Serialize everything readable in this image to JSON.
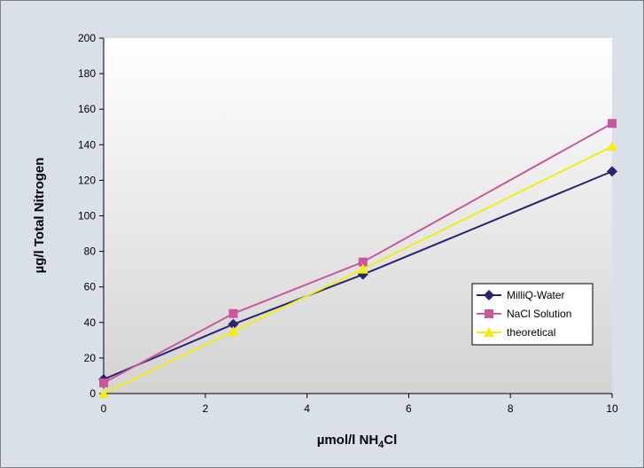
{
  "chart_data": {
    "type": "line",
    "xlabel": "µmol/l NH",
    "xlabel_subscript": "4",
    "xlabel_suffix": "Cl",
    "ylabel": "µg/l Total Nitrogen",
    "xlim": [
      0,
      10
    ],
    "ylim": [
      0,
      200
    ],
    "x_ticks": [
      0,
      2,
      4,
      6,
      8,
      10
    ],
    "y_ticks": [
      0,
      20,
      40,
      60,
      80,
      100,
      120,
      140,
      160,
      180,
      200
    ],
    "grid": false,
    "legend_position": "right",
    "series": [
      {
        "name": "MilliQ-Water",
        "color": "#2a246e",
        "marker": "diamond",
        "x": [
          0,
          2.55,
          5.1,
          10
        ],
        "y": [
          8,
          39,
          67,
          125
        ]
      },
      {
        "name": "NaCl Solution",
        "color": "#c9589b",
        "marker": "square",
        "x": [
          0,
          2.55,
          5.1,
          10
        ],
        "y": [
          6,
          45,
          74,
          152
        ]
      },
      {
        "name": "theoretical",
        "color": "#f2ec1a",
        "marker": "triangle",
        "x": [
          0,
          2.55,
          5.1,
          10
        ],
        "y": [
          0,
          35,
          70,
          139
        ]
      }
    ]
  }
}
